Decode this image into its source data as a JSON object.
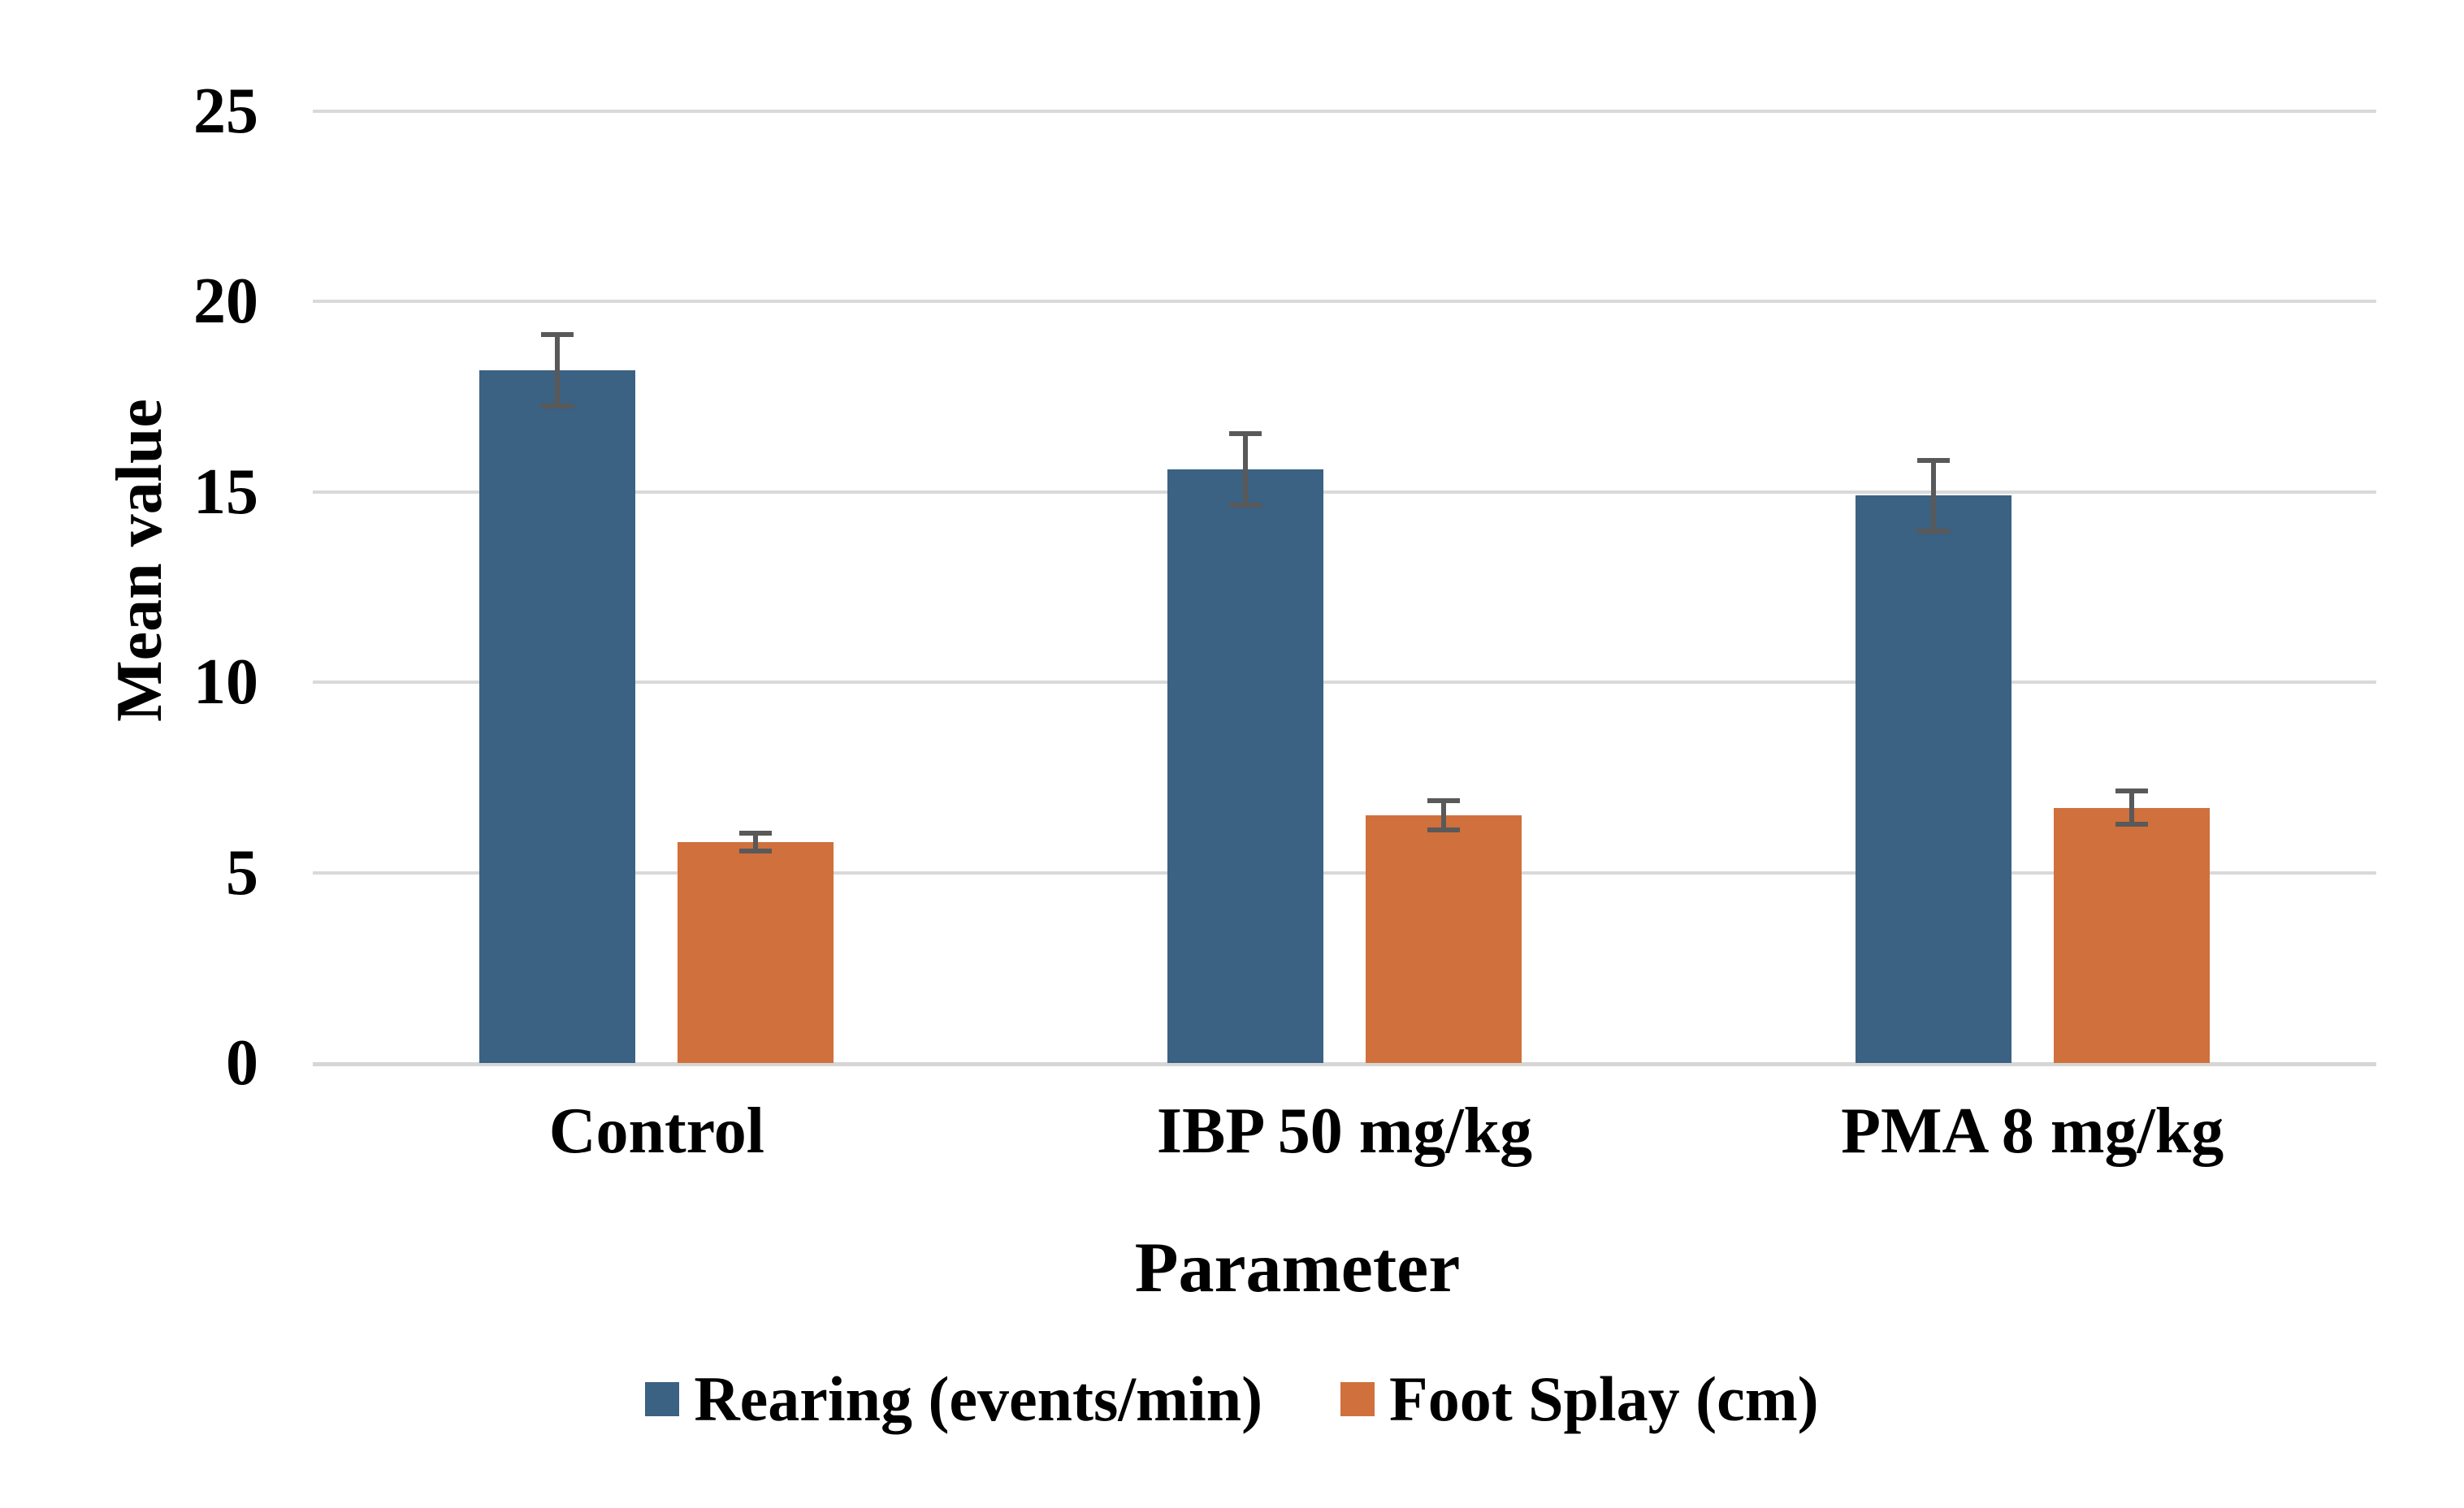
{
  "chart_data": {
    "type": "bar",
    "title": "",
    "xlabel": "Parameter",
    "ylabel": "Mean value",
    "categories": [
      "Control",
      "IBP 50 mg/kg",
      "PMA 8 mg/kg"
    ],
    "series": [
      {
        "name": "Rearing (events/min)",
        "color": "#3B6183",
        "values": [
          18.2,
          15.6,
          14.9
        ],
        "errors": [
          1.0,
          1.0,
          1.0
        ]
      },
      {
        "name": "Foot Splay (cm)",
        "color": "#D0703C",
        "values": [
          5.8,
          6.5,
          6.7
        ],
        "errors": [
          0.3,
          0.45,
          0.5
        ]
      }
    ],
    "ylim": [
      0,
      25
    ],
    "yticks": [
      0,
      5,
      10,
      15,
      20,
      25
    ],
    "grid": true,
    "legend_position": "bottom"
  },
  "colors": {
    "gridline": "#D9D9D9",
    "axis_line": "#D6D6D6",
    "error_bar": "#595959",
    "text": "#000000",
    "background": "#FFFFFF"
  }
}
